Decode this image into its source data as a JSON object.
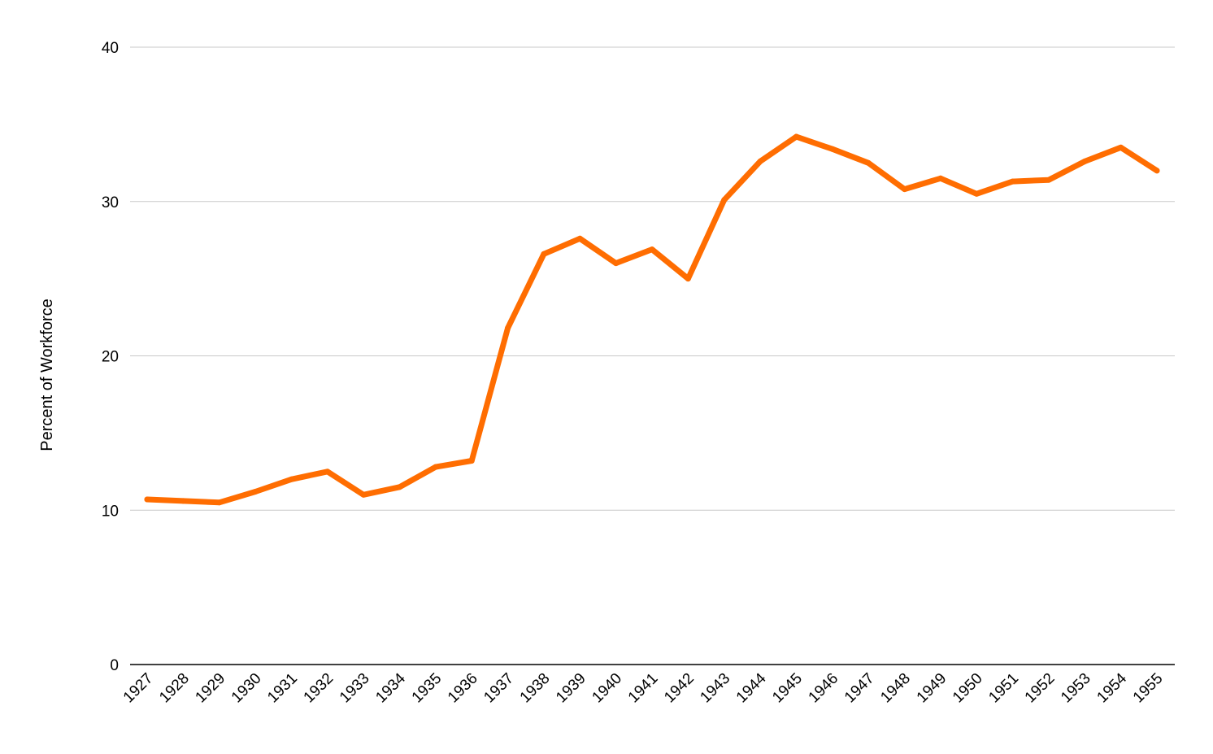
{
  "chart_data": {
    "type": "line",
    "title": "",
    "xlabel": "",
    "ylabel": "Percent of Workforce",
    "ylim": [
      0,
      40
    ],
    "yticks": [
      "0",
      "10",
      "20",
      "30",
      "40"
    ],
    "grid": true,
    "legend": "none",
    "categories": [
      "1927",
      "1928",
      "1929",
      "1930",
      "1931",
      "1932",
      "1933",
      "1934",
      "1935",
      "1936",
      "1937",
      "1938",
      "1939",
      "1940",
      "1941",
      "1942",
      "1943",
      "1944",
      "1945",
      "1946",
      "1947",
      "1948",
      "1949",
      "1950",
      "1951",
      "1952",
      "1953",
      "1954",
      "1955"
    ],
    "series": [
      {
        "color": "#FF6D01",
        "values": [
          10.7,
          10.6,
          10.5,
          11.2,
          12.0,
          12.5,
          11.0,
          11.5,
          12.8,
          13.2,
          21.8,
          26.6,
          27.6,
          26.0,
          26.9,
          25.0,
          30.1,
          32.6,
          34.2,
          33.4,
          32.5,
          30.8,
          31.5,
          30.5,
          31.3,
          31.4,
          32.6,
          33.5,
          32.0
        ]
      }
    ],
    "colors": {
      "line": "#FF6D01",
      "grid": "#C9C9C9",
      "baseline": "#000000",
      "text": "#000000"
    }
  }
}
